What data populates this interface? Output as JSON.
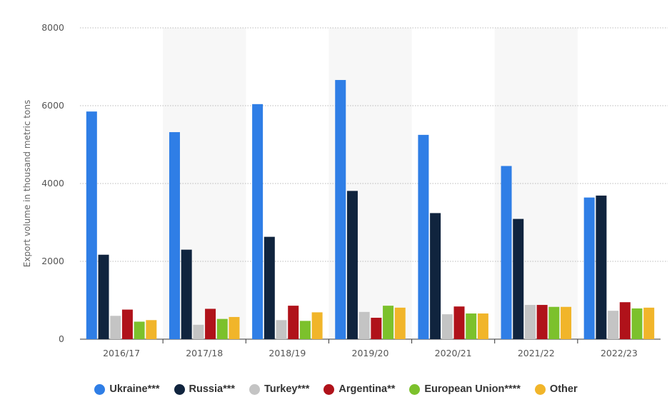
{
  "chart_data": {
    "type": "bar",
    "title": "",
    "xlabel": "",
    "ylabel": "Export volume in thousand metric tons",
    "ylim": [
      0,
      8000
    ],
    "yticks": [
      0,
      2000,
      4000,
      6000,
      8000
    ],
    "grid": true,
    "legend_position": "bottom",
    "categories": [
      "2016/17",
      "2017/18",
      "2018/19",
      "2019/20",
      "2020/21",
      "2021/22",
      "2022/23"
    ],
    "series": [
      {
        "name": "Ukraine***",
        "color": "#2f7ee6",
        "values": [
          5850,
          5320,
          6040,
          6660,
          5250,
          4450,
          3640
        ]
      },
      {
        "name": "Russia***",
        "color": "#10243e",
        "values": [
          2170,
          2300,
          2630,
          3810,
          3240,
          3090,
          3690
        ]
      },
      {
        "name": "Turkey***",
        "color": "#c4c4c4",
        "values": [
          600,
          370,
          490,
          700,
          640,
          880,
          730
        ]
      },
      {
        "name": "Argentina**",
        "color": "#b0121a",
        "values": [
          760,
          780,
          860,
          550,
          840,
          880,
          950
        ]
      },
      {
        "name": "European Union****",
        "color": "#7cc12c",
        "values": [
          450,
          520,
          470,
          860,
          660,
          830,
          790
        ]
      },
      {
        "name": "Other",
        "color": "#f1b52a",
        "values": [
          490,
          570,
          690,
          810,
          660,
          830,
          810
        ]
      }
    ]
  }
}
